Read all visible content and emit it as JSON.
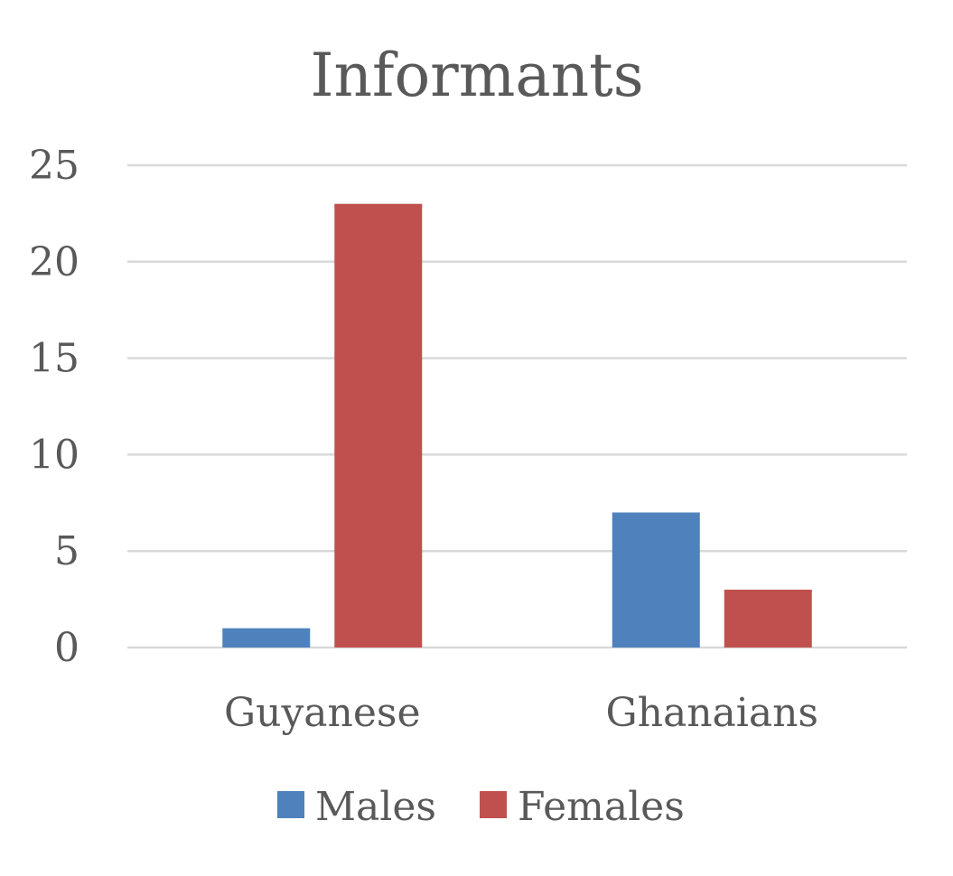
{
  "chart_data": {
    "type": "bar",
    "title": "Informants",
    "xlabel": "",
    "ylabel": "",
    "categories": [
      "Guyanese",
      "Ghanaians"
    ],
    "series": [
      {
        "name": "Males",
        "values": [
          1,
          7
        ],
        "color": "#4F81BD"
      },
      {
        "name": "Females",
        "values": [
          23,
          3
        ],
        "color": "#C0504D"
      }
    ],
    "ylim": [
      0,
      25
    ],
    "yticks": [
      0,
      5,
      10,
      15,
      20,
      25
    ],
    "grid": true,
    "legend_position": "bottom"
  }
}
